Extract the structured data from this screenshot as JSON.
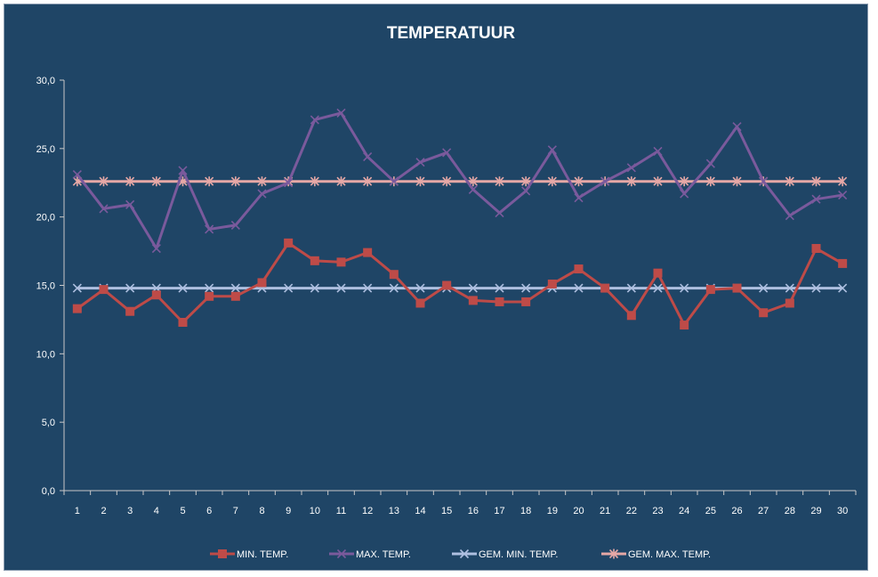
{
  "chart_data": {
    "type": "line",
    "title": "TEMPERATUUR",
    "xlabel": "",
    "ylabel": "",
    "ylim": [
      0,
      30
    ],
    "y_ticks": [
      "0,0",
      "5,0",
      "10,0",
      "15,0",
      "20,0",
      "25,0",
      "30,0"
    ],
    "y_tick_values": [
      0,
      5,
      10,
      15,
      20,
      25,
      30
    ],
    "categories": [
      "1",
      "2",
      "3",
      "4",
      "5",
      "6",
      "7",
      "8",
      "9",
      "10",
      "11",
      "12",
      "13",
      "14",
      "15",
      "16",
      "17",
      "18",
      "19",
      "20",
      "21",
      "22",
      "23",
      "24",
      "25",
      "26",
      "27",
      "28",
      "29",
      "30"
    ],
    "grid": false,
    "legend_position": "bottom",
    "series": [
      {
        "name": "MIN. TEMP.",
        "color": "#be4b48",
        "marker": "square",
        "values": [
          13.3,
          14.7,
          13.1,
          14.3,
          12.3,
          14.2,
          14.2,
          15.2,
          18.1,
          16.8,
          16.7,
          17.4,
          15.8,
          13.7,
          15.0,
          13.9,
          13.8,
          13.8,
          15.1,
          16.2,
          14.8,
          12.8,
          15.9,
          12.1,
          14.7,
          14.8,
          13.0,
          13.7,
          17.7,
          16.6
        ]
      },
      {
        "name": "MAX. TEMP.",
        "color": "#7a5a9c",
        "marker": "x",
        "values": [
          23.1,
          20.6,
          20.9,
          17.7,
          23.4,
          19.1,
          19.4,
          21.7,
          22.5,
          27.1,
          27.6,
          24.4,
          22.6,
          24.0,
          24.7,
          22.0,
          20.3,
          21.9,
          24.9,
          21.4,
          22.6,
          23.6,
          24.8,
          21.7,
          23.9,
          26.6,
          22.6,
          20.1,
          21.3,
          21.6
        ]
      },
      {
        "name": "GEM. MIN. TEMP.",
        "color": "#aebfe0",
        "marker": "x",
        "values": [
          14.8,
          14.8,
          14.8,
          14.8,
          14.8,
          14.8,
          14.8,
          14.8,
          14.8,
          14.8,
          14.8,
          14.8,
          14.8,
          14.8,
          14.8,
          14.8,
          14.8,
          14.8,
          14.8,
          14.8,
          14.8,
          14.8,
          14.8,
          14.8,
          14.8,
          14.8,
          14.8,
          14.8,
          14.8,
          14.8
        ]
      },
      {
        "name": "GEM. MAX. TEMP.",
        "color": "#e6a8a6",
        "marker": "asterisk",
        "values": [
          22.6,
          22.6,
          22.6,
          22.6,
          22.6,
          22.6,
          22.6,
          22.6,
          22.6,
          22.6,
          22.6,
          22.6,
          22.6,
          22.6,
          22.6,
          22.6,
          22.6,
          22.6,
          22.6,
          22.6,
          22.6,
          22.6,
          22.6,
          22.6,
          22.6,
          22.6,
          22.6,
          22.6,
          22.6,
          22.6
        ]
      }
    ]
  },
  "colors": {
    "background": "#1f4566",
    "axis": "#c8c8c8",
    "text": "#ffffff"
  }
}
